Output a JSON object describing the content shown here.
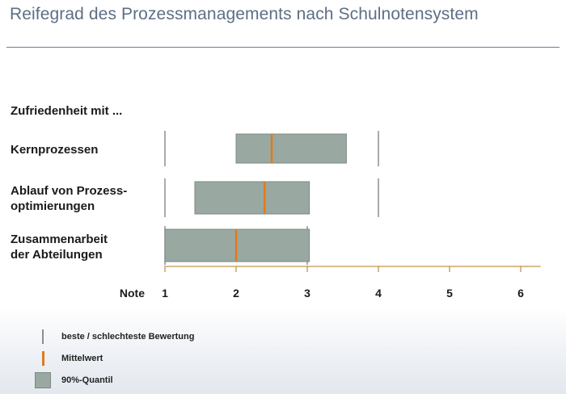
{
  "title": "Reifegrad des Prozessmanagements nach Schulnotensystem",
  "question": "Zufriedenheit mit ...",
  "chart_data": {
    "type": "bar",
    "subtype": "floating-range",
    "x_axis_label": "Note",
    "xlim": [
      1,
      6
    ],
    "ticks": [
      1,
      2,
      3,
      4,
      5,
      6
    ],
    "categories": [
      {
        "label_lines": [
          "Kernprozessen"
        ],
        "min": 1,
        "max": 4,
        "q_low": 2.0,
        "q_high": 3.55,
        "mean": 2.5
      },
      {
        "label_lines": [
          "Ablauf von Prozess-",
          "optimierungen"
        ],
        "min": 1,
        "max": 4,
        "q_low": 1.42,
        "q_high": 3.03,
        "mean": 2.4
      },
      {
        "label_lines": [
          "Zusammenarbeit",
          "der Abteilungen"
        ],
        "min": 1,
        "max": 3,
        "q_low": 1.0,
        "q_high": 3.03,
        "mean": 2.0
      }
    ]
  },
  "legend": {
    "items": [
      {
        "label": "beste / schlechteste Bewertung"
      },
      {
        "label": "Mittelwert"
      },
      {
        "label": "90%-Quantil"
      }
    ]
  },
  "colors": {
    "box": "#9aa8a2",
    "box_edge": "#7c8a84",
    "mean": "#e07a1c",
    "whisker": "#8a8f94",
    "axis": "#c8a66a",
    "title": "#5d6f84"
  }
}
